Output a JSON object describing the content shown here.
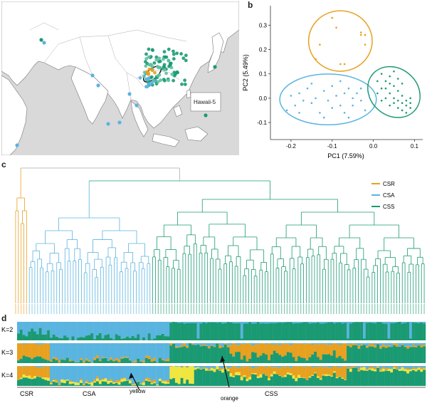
{
  "panels": {
    "a": "a",
    "b": "b",
    "c": "c",
    "d": "d"
  },
  "map": {
    "inset_label": "Hawaii-5"
  },
  "pca": {
    "xlabel": "PC1 (7.59%)",
    "ylabel": "PC2 (5.49%)",
    "xticks": [
      "-0.2",
      "-0.1",
      "0.0",
      "0.1"
    ],
    "yticks": [
      "0.3",
      "0.2",
      "0.1",
      "0.0",
      "-0.1"
    ]
  },
  "legend": {
    "items": [
      {
        "label": "CSR",
        "color": "#e8a020"
      },
      {
        "label": "CSA",
        "color": "#5ab4e0"
      },
      {
        "label": "CSS",
        "color": "#1a9a72"
      }
    ]
  },
  "admixture": {
    "rows": [
      "K=2",
      "K=3",
      "K=4"
    ],
    "group_labels": [
      "CSR",
      "CSA",
      "CSS"
    ],
    "arrows": [
      "yellow",
      "orange"
    ]
  },
  "colors": {
    "csr": "#e8a020",
    "csa": "#5ab4e0",
    "css": "#1a9a72",
    "yellow": "#f0e640",
    "land": "#ffffff",
    "sea": "#d9d9d9",
    "gray": "#aaaaaa"
  },
  "chart_data": {
    "type": "scatter",
    "title": "",
    "xlabel": "PC1 (7.59%)",
    "ylabel": "PC2 (5.49%)",
    "xlim": [
      -0.25,
      0.12
    ],
    "ylim": [
      -0.17,
      0.38
    ],
    "series": [
      {
        "name": "CSR",
        "points": [
          [
            -0.1,
            0.33
          ],
          [
            -0.09,
            0.29
          ],
          [
            -0.03,
            0.27
          ],
          [
            -0.02,
            0.26
          ],
          [
            -0.03,
            0.26
          ],
          [
            -0.02,
            0.26
          ],
          [
            -0.13,
            0.22
          ],
          [
            -0.14,
            0.16
          ],
          [
            -0.08,
            0.14
          ],
          [
            -0.07,
            0.14
          ],
          [
            -0.02,
            0.22
          ]
        ]
      },
      {
        "name": "CSA",
        "points": [
          [
            -0.21,
            -0.05
          ],
          [
            -0.19,
            -0.03
          ],
          [
            -0.18,
            0.02
          ],
          [
            -0.17,
            -0.01
          ],
          [
            -0.16,
            0.04
          ],
          [
            -0.15,
            -0.02
          ],
          [
            -0.14,
            0.0
          ],
          [
            -0.13,
            -0.06
          ],
          [
            -0.12,
            0.03
          ],
          [
            -0.11,
            -0.01
          ],
          [
            -0.1,
            0.05
          ],
          [
            -0.1,
            -0.04
          ],
          [
            -0.09,
            0.01
          ],
          [
            -0.08,
            -0.03
          ],
          [
            -0.07,
            0.02
          ],
          [
            -0.07,
            -0.06
          ],
          [
            -0.06,
            0.04
          ],
          [
            -0.05,
            0.0
          ],
          [
            -0.05,
            -0.03
          ],
          [
            -0.04,
            0.02
          ],
          [
            -0.03,
            -0.01
          ],
          [
            -0.03,
            0.04
          ],
          [
            -0.02,
            -0.05
          ],
          [
            -0.01,
            0.01
          ],
          [
            -0.12,
            -0.08
          ],
          [
            -0.15,
            0.06
          ],
          [
            -0.2,
            0.01
          ],
          [
            -0.08,
            0.07
          ],
          [
            -0.18,
            -0.06
          ],
          [
            -0.06,
            -0.08
          ]
        ]
      },
      {
        "name": "CSS",
        "points": [
          [
            0.02,
            0.1
          ],
          [
            0.03,
            0.07
          ],
          [
            0.03,
            0.04
          ],
          [
            0.04,
            0.02
          ],
          [
            0.04,
            0.09
          ],
          [
            0.05,
            0.05
          ],
          [
            0.05,
            0.0
          ],
          [
            0.06,
            0.03
          ],
          [
            0.06,
            -0.01
          ],
          [
            0.07,
            0.01
          ],
          [
            0.07,
            -0.02
          ],
          [
            0.08,
            -0.01
          ],
          [
            0.08,
            -0.03
          ],
          [
            0.09,
            -0.02
          ],
          [
            0.09,
            0.0
          ],
          [
            0.06,
            -0.04
          ],
          [
            0.07,
            -0.05
          ],
          [
            0.05,
            -0.02
          ],
          [
            0.04,
            0.06
          ],
          [
            0.02,
            0.04
          ],
          [
            0.01,
            0.02
          ],
          [
            0.03,
            0.0
          ],
          [
            0.08,
            -0.06
          ],
          [
            0.05,
            0.11
          ],
          [
            0.06,
            0.08
          ],
          [
            0.07,
            0.06
          ],
          [
            0.04,
            -0.03
          ],
          [
            0.09,
            -0.04
          ],
          [
            0.02,
            -0.01
          ],
          [
            0.01,
            0.07
          ]
        ]
      }
    ],
    "grid": false
  }
}
